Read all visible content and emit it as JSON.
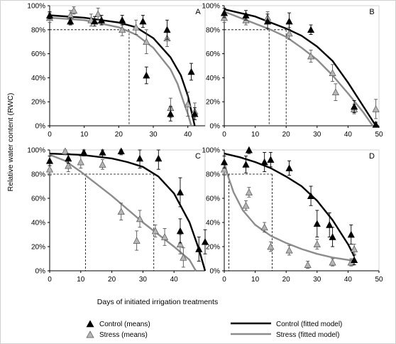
{
  "chart_data": {
    "type": "scatter",
    "ylabel": "Relative water content (RWC)",
    "xlabel": "Days of initiated irrigation treatments",
    "x_ticks_left": [
      "0",
      "10",
      "20",
      "30",
      "40"
    ],
    "x_ticks_right": [
      "0",
      "10",
      "20",
      "30",
      "40",
      "50"
    ],
    "y_ticks": [
      "0%",
      "20%",
      "40%",
      "60%",
      "80%",
      "100%"
    ],
    "xlim": [
      0,
      50
    ],
    "ylim": [
      0,
      100
    ],
    "legend": {
      "control_means": "Control (means)",
      "stress_means": "Stress (means)",
      "control_model": "Control (fitted model)",
      "stress_model": "Stress (fitted model)"
    },
    "colors": {
      "control": "#000000",
      "stress": "#8c8c8c"
    },
    "panels": [
      {
        "label": "A",
        "x_max": 45,
        "control_points": [
          [
            0,
            92,
            3
          ],
          [
            6,
            87,
            3
          ],
          [
            13,
            87,
            4
          ],
          [
            15,
            88,
            4
          ],
          [
            21,
            88,
            4
          ],
          [
            27,
            87,
            5
          ],
          [
            28,
            42,
            7
          ],
          [
            34,
            80,
            8
          ],
          [
            35,
            10,
            6
          ],
          [
            41,
            45,
            7
          ],
          [
            42,
            10,
            5
          ]
        ],
        "stress_points": [
          [
            0,
            90,
            4
          ],
          [
            6,
            92,
            4
          ],
          [
            7,
            96,
            3
          ],
          [
            12,
            88,
            5
          ],
          [
            14,
            93,
            5
          ],
          [
            21,
            80,
            5
          ],
          [
            25,
            82,
            6
          ],
          [
            28,
            70,
            10
          ],
          [
            34,
            73,
            7
          ],
          [
            35,
            15,
            8
          ],
          [
            40,
            18,
            10
          ],
          [
            42,
            12,
            7
          ]
        ],
        "control_curve": [
          [
            0,
            92
          ],
          [
            10,
            90
          ],
          [
            20,
            86
          ],
          [
            25,
            82
          ],
          [
            30,
            73
          ],
          [
            35,
            57
          ],
          [
            38,
            42
          ],
          [
            40,
            25
          ],
          [
            42,
            0
          ]
        ],
        "stress_curve": [
          [
            0,
            90
          ],
          [
            10,
            88
          ],
          [
            20,
            82
          ],
          [
            25,
            76
          ],
          [
            30,
            65
          ],
          [
            35,
            47
          ],
          [
            37,
            35
          ],
          [
            39,
            18
          ],
          [
            40,
            10
          ],
          [
            41,
            0
          ]
        ],
        "ref_line_y": 80,
        "ref_days": [
          23
        ]
      },
      {
        "label": "B",
        "x_max": 50,
        "control_points": [
          [
            0,
            94,
            4
          ],
          [
            7,
            92,
            4
          ],
          [
            14,
            87,
            6
          ],
          [
            21,
            87,
            7
          ],
          [
            28,
            80,
            4
          ],
          [
            42,
            16,
            5
          ],
          [
            49,
            1,
            2
          ]
        ],
        "stress_points": [
          [
            0,
            90,
            4
          ],
          [
            7,
            88,
            4
          ],
          [
            14,
            90,
            5
          ],
          [
            21,
            77,
            5
          ],
          [
            28,
            58,
            5
          ],
          [
            35,
            44,
            7
          ],
          [
            36,
            28,
            7
          ],
          [
            42,
            14,
            4
          ],
          [
            49,
            14,
            8
          ]
        ],
        "control_curve": [
          [
            0,
            97
          ],
          [
            10,
            91
          ],
          [
            15,
            86
          ],
          [
            20,
            81
          ],
          [
            25,
            75
          ],
          [
            30,
            66
          ],
          [
            35,
            54
          ],
          [
            40,
            36
          ],
          [
            45,
            16
          ],
          [
            49,
            0
          ]
        ],
        "stress_curve": [
          [
            0,
            95
          ],
          [
            5,
            90
          ],
          [
            10,
            85
          ],
          [
            15,
            80
          ],
          [
            20,
            74
          ],
          [
            25,
            65
          ],
          [
            30,
            55
          ],
          [
            35,
            42
          ],
          [
            40,
            27
          ],
          [
            45,
            11
          ],
          [
            48,
            0
          ]
        ],
        "ref_line_y": 80,
        "ref_days": [
          14.5,
          20
        ]
      },
      {
        "label": "C",
        "x_max": 50,
        "control_points": [
          [
            0,
            91,
            4
          ],
          [
            6,
            93,
            4
          ],
          [
            11,
            98,
            3
          ],
          [
            17,
            98,
            4
          ],
          [
            23,
            99,
            3
          ],
          [
            29,
            93,
            8
          ],
          [
            35,
            93,
            9
          ],
          [
            42,
            65,
            12
          ],
          [
            42,
            33,
            10
          ],
          [
            48,
            18,
            10
          ],
          [
            50,
            24,
            10
          ]
        ],
        "stress_points": [
          [
            0,
            84,
            5
          ],
          [
            5,
            99,
            3
          ],
          [
            6,
            87,
            5
          ],
          [
            10,
            90,
            5
          ],
          [
            17,
            88,
            4
          ],
          [
            23,
            49,
            7
          ],
          [
            28,
            25,
            8
          ],
          [
            29,
            43,
            7
          ],
          [
            34,
            33,
            5
          ],
          [
            37,
            28,
            7
          ],
          [
            42,
            22,
            8
          ],
          [
            43,
            11,
            8
          ]
        ],
        "control_curve": [
          [
            0,
            97
          ],
          [
            10,
            96
          ],
          [
            20,
            93
          ],
          [
            25,
            90
          ],
          [
            30,
            86
          ],
          [
            35,
            78
          ],
          [
            40,
            64
          ],
          [
            45,
            40
          ],
          [
            48,
            18
          ],
          [
            50,
            0
          ]
        ],
        "stress_curve": [
          [
            0,
            96
          ],
          [
            5,
            91
          ],
          [
            10,
            82
          ],
          [
            15,
            72
          ],
          [
            20,
            62
          ],
          [
            25,
            51
          ],
          [
            30,
            40
          ],
          [
            35,
            30
          ],
          [
            40,
            20
          ],
          [
            45,
            9
          ],
          [
            47,
            0
          ]
        ],
        "ref_line_y": 80,
        "ref_days": [
          11.5,
          33.5
        ]
      },
      {
        "label": "D",
        "x_max": 50,
        "control_points": [
          [
            0,
            90,
            5
          ],
          [
            7,
            88,
            7
          ],
          [
            8,
            100,
            3
          ],
          [
            13,
            90,
            8
          ],
          [
            15,
            92,
            6
          ],
          [
            21,
            85,
            6
          ],
          [
            28,
            62,
            8
          ],
          [
            30,
            39,
            11
          ],
          [
            34,
            38,
            10
          ],
          [
            35,
            28,
            8
          ],
          [
            41,
            30,
            8
          ],
          [
            42,
            9,
            4
          ]
        ],
        "stress_points": [
          [
            0,
            84,
            5
          ],
          [
            7,
            54,
            4
          ],
          [
            8,
            65,
            4
          ],
          [
            13,
            36,
            4
          ],
          [
            15,
            20,
            4
          ],
          [
            21,
            17,
            4
          ],
          [
            27,
            5,
            3
          ],
          [
            30,
            22,
            4
          ],
          [
            35,
            7,
            3
          ],
          [
            41,
            7,
            3
          ],
          [
            42,
            18,
            4
          ]
        ],
        "control_curve": [
          [
            0,
            97
          ],
          [
            5,
            94
          ],
          [
            10,
            90
          ],
          [
            15,
            85
          ],
          [
            20,
            78
          ],
          [
            25,
            70
          ],
          [
            30,
            58
          ],
          [
            35,
            42
          ],
          [
            40,
            22
          ],
          [
            42,
            12
          ]
        ],
        "stress_curve": [
          [
            0,
            90
          ],
          [
            1,
            80
          ],
          [
            3,
            65
          ],
          [
            6,
            50
          ],
          [
            10,
            38
          ],
          [
            15,
            29
          ],
          [
            20,
            23
          ],
          [
            25,
            18
          ],
          [
            30,
            14
          ],
          [
            35,
            11
          ],
          [
            40,
            9
          ],
          [
            42,
            8
          ]
        ],
        "ref_line_y": 80,
        "ref_days": [
          1.5,
          15.5
        ]
      }
    ]
  }
}
